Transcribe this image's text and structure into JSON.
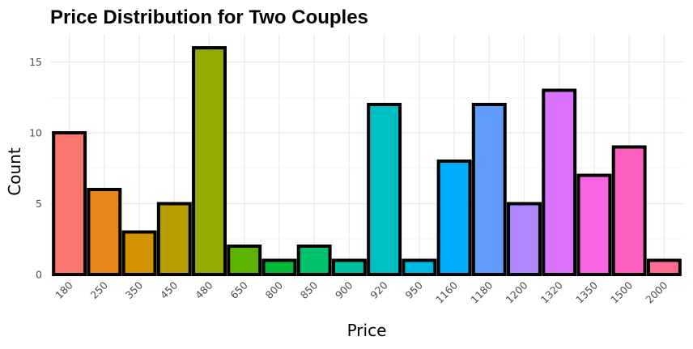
{
  "chart_data": {
    "type": "bar",
    "title": "Price Distribution for Two Couples",
    "xlabel": "Price",
    "ylabel": "Count",
    "categories": [
      "180",
      "250",
      "350",
      "450",
      "480",
      "650",
      "800",
      "850",
      "900",
      "920",
      "950",
      "1160",
      "1180",
      "1200",
      "1320",
      "1350",
      "1500",
      "2000"
    ],
    "values": [
      10,
      6,
      3,
      5,
      16,
      2,
      1,
      2,
      1,
      12,
      1,
      8,
      12,
      5,
      13,
      7,
      9,
      1
    ],
    "colors": [
      "#F8766D",
      "#E7861B",
      "#D39200",
      "#B89E00",
      "#93AA00",
      "#5BB300",
      "#00BA38",
      "#00C06B",
      "#00C19F",
      "#00BFC4",
      "#00B9E3",
      "#00ADFA",
      "#619CFF",
      "#AE87FF",
      "#DB72FB",
      "#F564E3",
      "#FF61C3",
      "#FF6C91"
    ],
    "yticks": [
      0,
      5,
      10,
      15
    ],
    "ylim": [
      0,
      16.8
    ],
    "grid": true,
    "legend": "none"
  }
}
